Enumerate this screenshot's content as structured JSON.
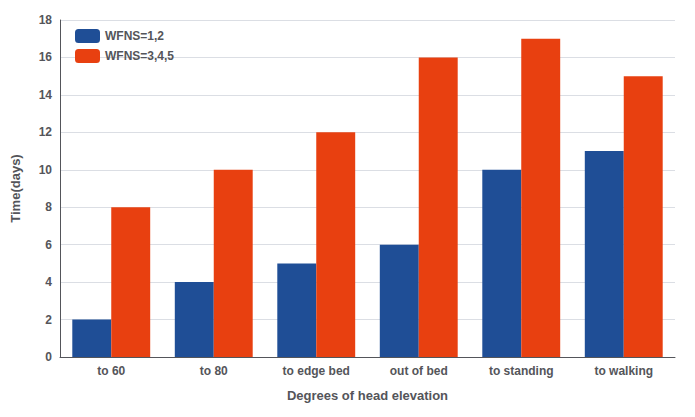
{
  "chart_data": {
    "type": "bar",
    "categories": [
      "to 60",
      "to 80",
      "to edge bed",
      "out of bed",
      "to standing",
      "to walking"
    ],
    "series": [
      {
        "name": "WFNS=1,2",
        "color": "#1f4e96",
        "values": [
          2,
          4,
          5,
          6,
          10,
          11
        ]
      },
      {
        "name": "WFNS=3,4,5",
        "color": "#e84010",
        "values": [
          8,
          10,
          12,
          16,
          17,
          15
        ]
      }
    ],
    "xlabel": "Degrees of head elevation",
    "ylabel": "Time(days)",
    "ylim": [
      0,
      18
    ],
    "yticks": [
      0,
      2,
      4,
      6,
      8,
      10,
      12,
      14,
      16,
      18
    ],
    "grid": true,
    "legend": "upper left"
  }
}
